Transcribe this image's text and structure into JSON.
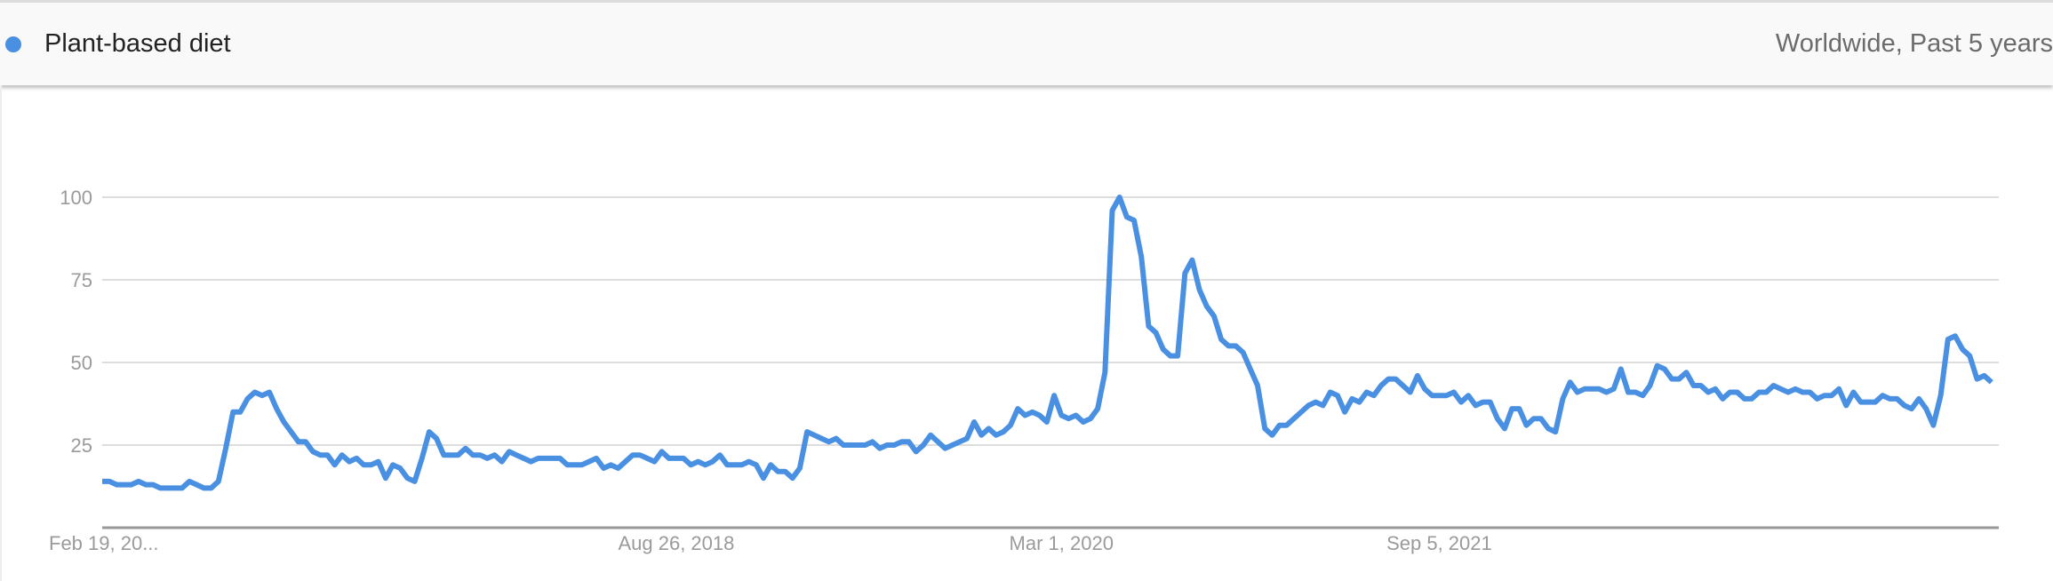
{
  "header": {
    "term": "Plant-based diet",
    "scope": "Worldwide, Past 5 years",
    "legend_icon": "circle-dot-icon"
  },
  "colors": {
    "series": "#4a90e2",
    "grid": "#dddddd",
    "axis": "#999999"
  },
  "chart_data": {
    "type": "line",
    "title": "",
    "xlabel": "",
    "ylabel": "",
    "ylim": [
      0,
      100
    ],
    "yticks": [
      "100",
      "75",
      "50",
      "25"
    ],
    "ytick_values": [
      100,
      75,
      50,
      25
    ],
    "xtick_labels": [
      "Feb 19, 20...",
      "Aug 26, 2018",
      "Mar 1, 2020",
      "Sep 5, 2021"
    ],
    "xtick_week_index": [
      0,
      79,
      132,
      184
    ],
    "x_unit": "weeks starting Feb 19, 2017",
    "grid": true,
    "series": [
      {
        "values": [
          14,
          14,
          13,
          13,
          13,
          14,
          13,
          13,
          12,
          12,
          12,
          12,
          14,
          13,
          12,
          12,
          14,
          24,
          35,
          35,
          39,
          41,
          40,
          41,
          36,
          32,
          29,
          26,
          26,
          23,
          22,
          22,
          19,
          22,
          20,
          21,
          19,
          19,
          20,
          15,
          19,
          18,
          15,
          14,
          21,
          29,
          27,
          22,
          22,
          22,
          24,
          22,
          22,
          21,
          22,
          20,
          23,
          22,
          21,
          20,
          21,
          21,
          21,
          21,
          19,
          19,
          19,
          20,
          21,
          18,
          19,
          18,
          20,
          22,
          22,
          21,
          20,
          23,
          21,
          21,
          21,
          19,
          20,
          19,
          20,
          22,
          19,
          19,
          19,
          20,
          19,
          15,
          19,
          17,
          17,
          15,
          18,
          29,
          28,
          27,
          26,
          27,
          25,
          25,
          25,
          25,
          26,
          24,
          25,
          25,
          26,
          26,
          23,
          25,
          28,
          26,
          24,
          25,
          26,
          27,
          32,
          28,
          30,
          28,
          29,
          31,
          36,
          34,
          35,
          34,
          32,
          40,
          34,
          33,
          34,
          32,
          33,
          36,
          47,
          96,
          100,
          94,
          93,
          82,
          61,
          59,
          54,
          52,
          52,
          77,
          81,
          72,
          67,
          64,
          57,
          55,
          55,
          53,
          48,
          43,
          30,
          28,
          31,
          31,
          33,
          35,
          37,
          38,
          37,
          41,
          40,
          35,
          39,
          38,
          41,
          40,
          43,
          45,
          45,
          43,
          41,
          46,
          42,
          40,
          40,
          40,
          41,
          38,
          40,
          37,
          38,
          38,
          33,
          30,
          36,
          36,
          31,
          33,
          33,
          30,
          29,
          39,
          44,
          41,
          42,
          42,
          42,
          41,
          42,
          48,
          41,
          41,
          40,
          43,
          49,
          48,
          45,
          45,
          47,
          43,
          43,
          41,
          42,
          39,
          41,
          41,
          39,
          39,
          41,
          41,
          43,
          42,
          41,
          42,
          41,
          41,
          39,
          40,
          40,
          42,
          37,
          41,
          38,
          38,
          38,
          40,
          39,
          39,
          37,
          36,
          39,
          36,
          31,
          40,
          57,
          58,
          54,
          52,
          45,
          46,
          44
        ]
      }
    ]
  }
}
